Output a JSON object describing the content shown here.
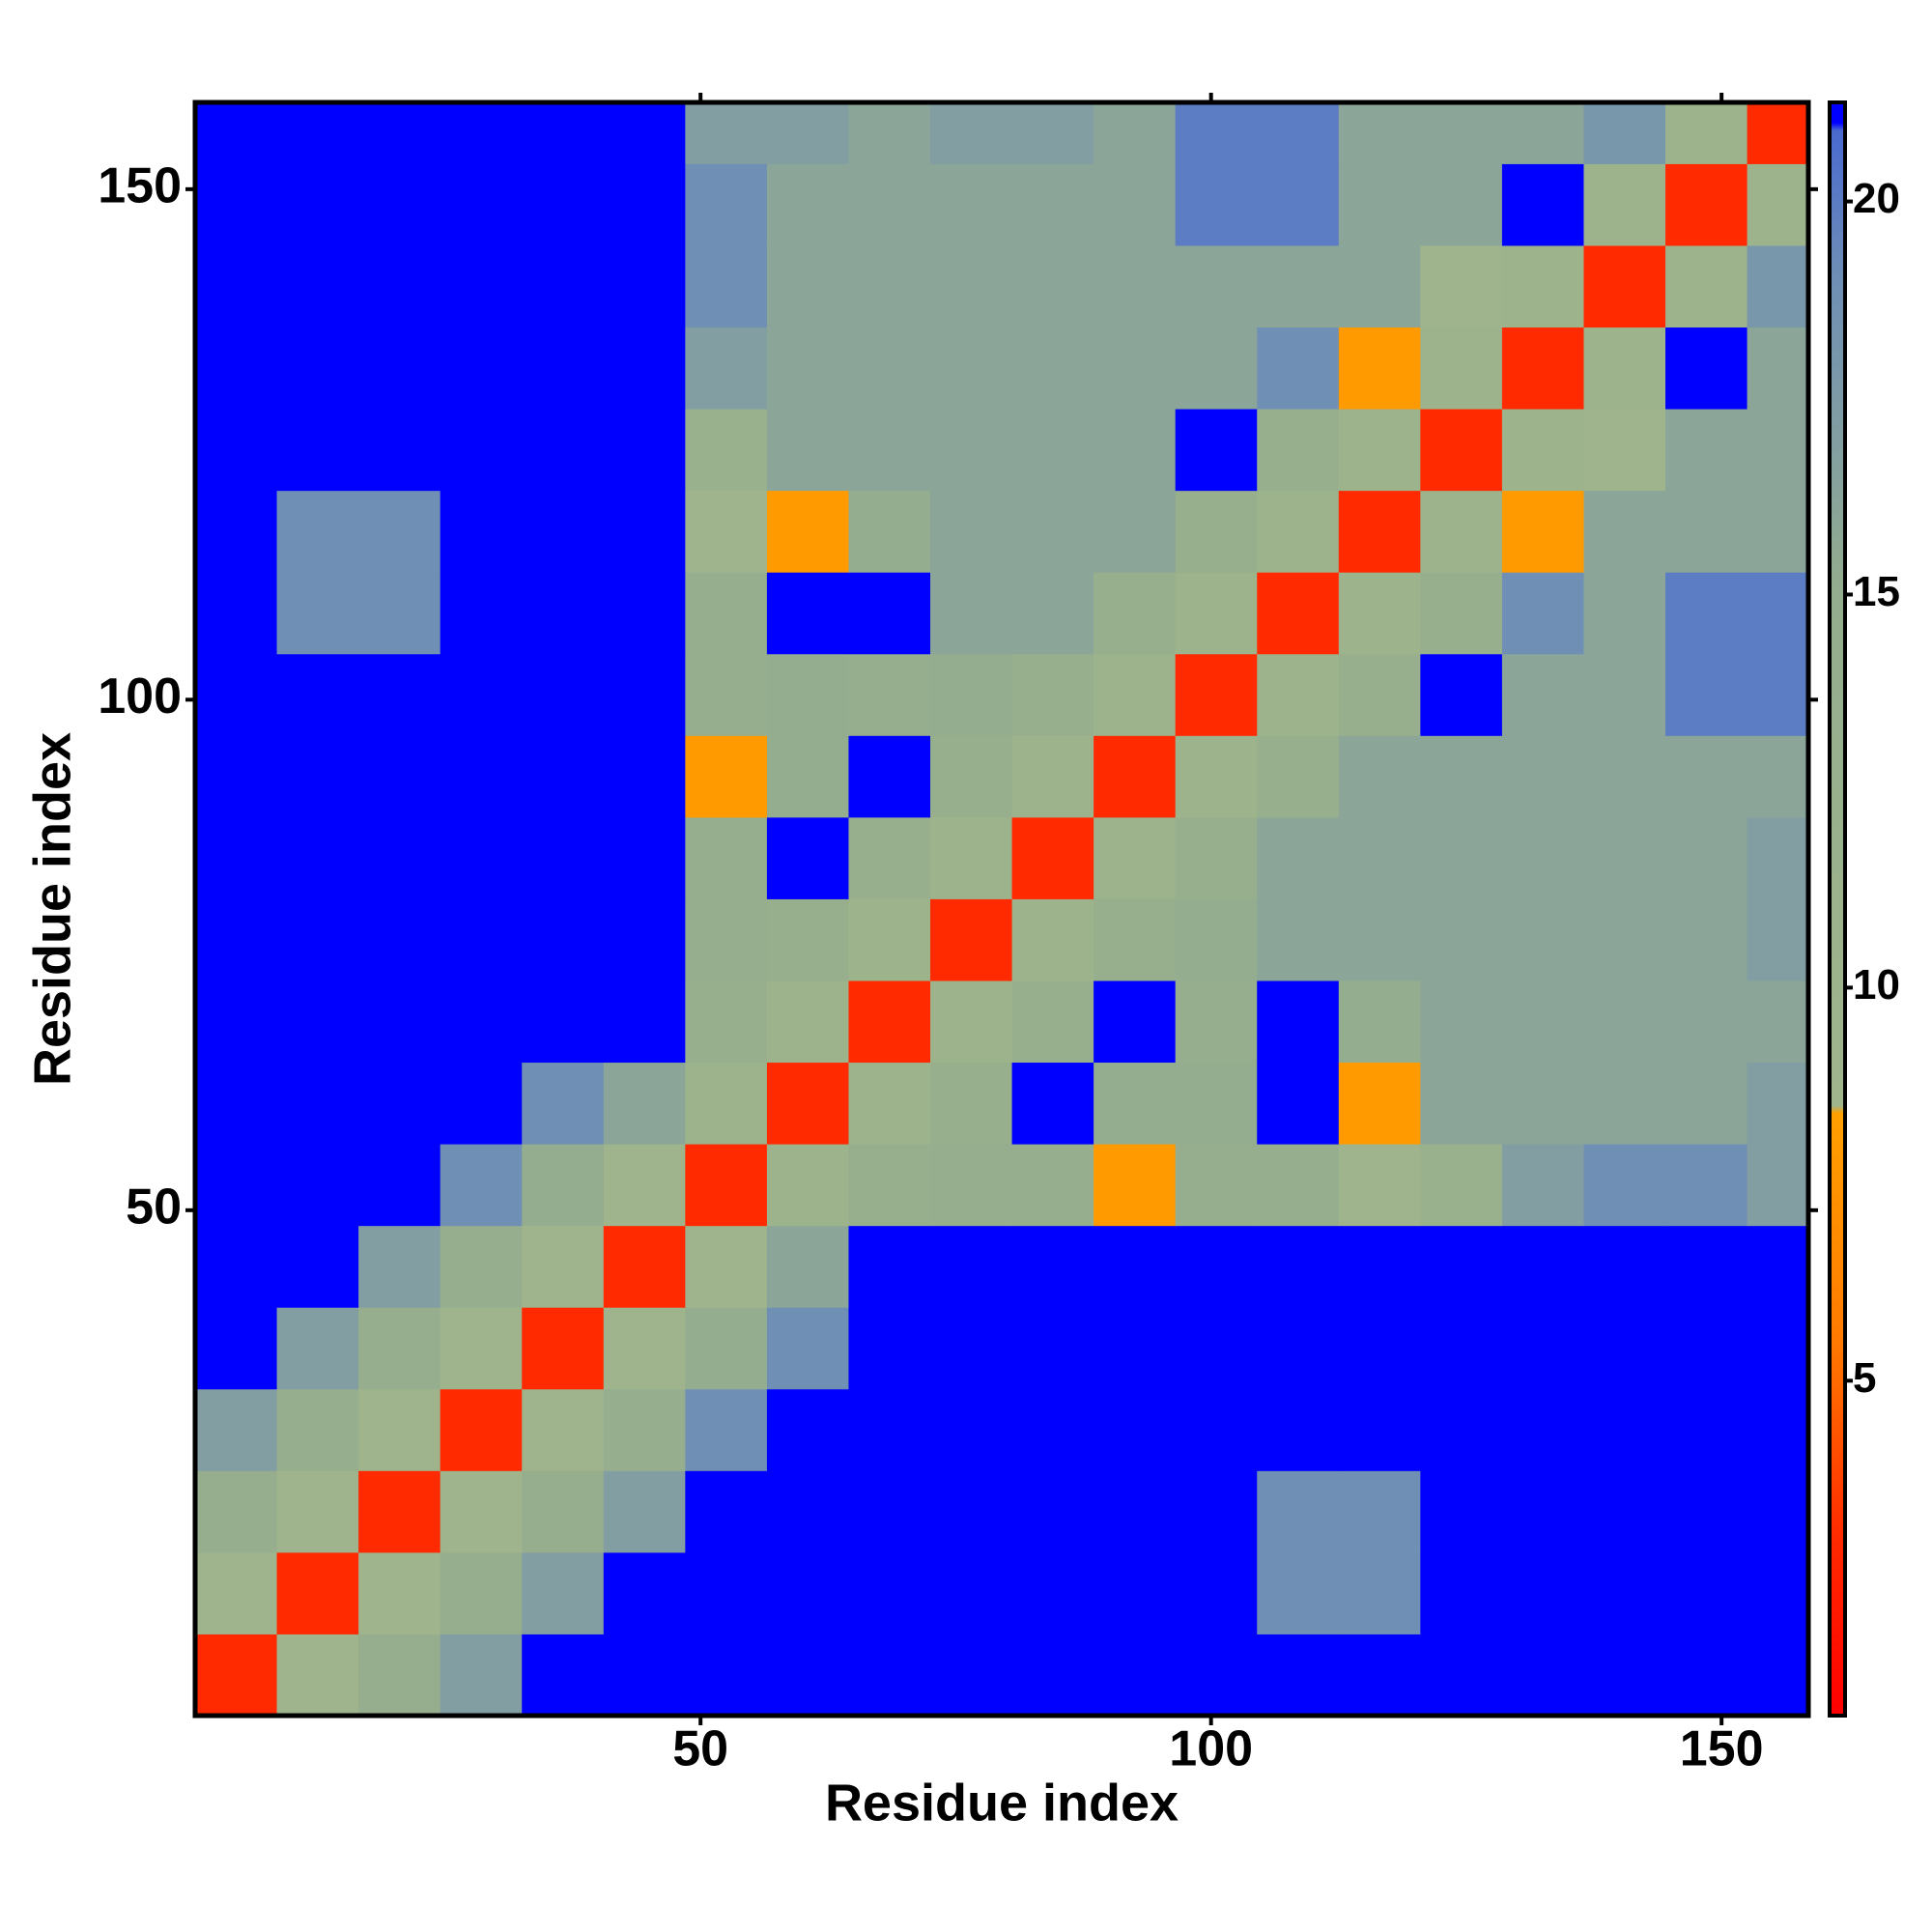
{
  "chart_data": {
    "type": "heatmap",
    "xlabel": "Residue index",
    "ylabel": "Residue index",
    "xlim": [
      0.5,
      158.5
    ],
    "ylim": [
      0.5,
      158.5
    ],
    "xticks": [
      50,
      100,
      150
    ],
    "yticks": [
      50,
      100,
      150
    ],
    "xbins": [
      0.5,
      8.5,
      16.5,
      24.5,
      32.5,
      40.5,
      48.5,
      56.5,
      64.5,
      72.5,
      80.5,
      88.5,
      96.5,
      104.5,
      112.5,
      120.5,
      128.5,
      136.5,
      144.5,
      152.5,
      158.5
    ],
    "ybins": [
      0.5,
      8.5,
      16.5,
      24.5,
      32.5,
      40.5,
      48.5,
      56.5,
      64.5,
      72.5,
      80.5,
      88.5,
      96.5,
      104.5,
      112.5,
      120.5,
      128.5,
      136.5,
      144.5,
      152.5,
      158.5
    ],
    "z": [
      [
        3,
        9,
        14,
        17,
        21,
        21,
        21,
        21,
        21,
        21,
        21,
        21,
        21,
        21,
        21,
        21,
        21,
        21,
        21,
        21
      ],
      [
        9,
        3,
        9,
        14,
        17,
        21,
        21,
        21,
        21,
        21,
        21,
        21,
        21,
        19,
        19,
        21,
        21,
        21,
        21,
        21
      ],
      [
        14,
        9,
        3,
        9,
        14,
        17,
        21,
        21,
        21,
        21,
        21,
        21,
        21,
        19,
        19,
        21,
        21,
        21,
        21,
        21
      ],
      [
        17,
        14,
        9,
        3,
        9,
        14,
        19,
        21,
        21,
        21,
        21,
        21,
        21,
        21,
        21,
        21,
        21,
        21,
        21,
        21
      ],
      [
        21,
        17,
        14,
        9,
        3,
        9,
        15,
        19,
        21,
        21,
        21,
        21,
        21,
        21,
        21,
        21,
        21,
        21,
        21,
        21
      ],
      [
        21,
        21,
        17,
        14,
        9,
        3,
        9,
        16,
        21,
        21,
        21,
        21,
        21,
        21,
        21,
        21,
        21,
        21,
        21,
        21
      ],
      [
        21,
        21,
        21,
        19,
        15,
        9,
        3,
        10,
        13,
        14,
        14,
        8,
        14,
        14,
        9,
        12,
        17,
        19,
        19,
        17
      ],
      [
        21,
        21,
        21,
        21,
        19,
        16,
        10,
        3,
        10,
        13,
        21,
        15,
        15,
        21,
        8,
        16,
        16,
        16,
        16,
        17
      ],
      [
        21,
        21,
        21,
        21,
        21,
        21,
        13,
        10,
        3,
        10,
        13,
        21,
        14,
        21,
        15,
        16,
        16,
        16,
        16,
        16
      ],
      [
        21,
        21,
        21,
        21,
        21,
        21,
        14,
        13,
        10,
        3,
        10,
        13,
        15,
        16,
        16,
        16,
        16,
        16,
        16,
        17
      ],
      [
        21,
        21,
        21,
        21,
        21,
        21,
        14,
        21,
        13,
        10,
        3,
        10,
        13,
        16,
        16,
        16,
        16,
        16,
        16,
        17
      ],
      [
        21,
        21,
        21,
        21,
        21,
        21,
        8,
        15,
        21,
        13,
        10,
        3,
        10,
        13,
        16,
        16,
        16,
        16,
        16,
        16
      ],
      [
        21,
        21,
        21,
        21,
        21,
        21,
        14,
        15,
        14,
        15,
        13,
        10,
        3,
        10,
        13,
        21,
        16,
        16,
        20,
        20
      ],
      [
        21,
        19,
        19,
        21,
        21,
        21,
        14,
        21,
        21,
        16,
        16,
        13,
        10,
        3,
        10,
        13,
        19,
        16,
        20,
        20
      ],
      [
        21,
        19,
        19,
        21,
        21,
        21,
        9,
        8,
        15,
        16,
        16,
        16,
        13,
        10,
        3,
        10,
        8,
        16,
        16,
        16
      ],
      [
        21,
        21,
        21,
        21,
        21,
        21,
        12,
        16,
        16,
        16,
        16,
        16,
        21,
        13,
        10,
        3,
        10,
        9,
        16,
        16
      ],
      [
        21,
        21,
        21,
        21,
        21,
        21,
        17,
        16,
        16,
        16,
        16,
        16,
        16,
        19,
        8,
        10,
        3,
        10,
        21,
        16
      ],
      [
        21,
        21,
        21,
        21,
        21,
        21,
        19,
        16,
        16,
        16,
        16,
        16,
        16,
        16,
        16,
        9,
        10,
        3,
        10,
        18
      ],
      [
        21,
        21,
        21,
        21,
        21,
        21,
        19,
        16,
        16,
        16,
        16,
        16,
        20,
        20,
        16,
        16,
        21,
        10,
        3,
        10
      ],
      [
        21,
        21,
        21,
        21,
        21,
        21,
        17,
        17,
        16,
        17,
        17,
        16,
        20,
        20,
        16,
        16,
        16,
        18,
        10,
        3
      ]
    ],
    "clim": [
      0.74,
      21.26
    ],
    "cticks": [
      5,
      10,
      15,
      20
    ],
    "colorscale": [
      [
        0.74,
        "#ff0000"
      ],
      [
        3,
        "#ff2a00"
      ],
      [
        5.5,
        "#ff7a00"
      ],
      [
        8.4,
        "#ffa000"
      ],
      [
        8.5,
        "#a0b58c"
      ],
      [
        15,
        "#94ad8e"
      ],
      [
        19,
        "#6f8fb5"
      ],
      [
        20.9,
        "#4a6ad0"
      ],
      [
        21,
        "#0000ff"
      ],
      [
        21.26,
        "#0000ff"
      ]
    ]
  }
}
